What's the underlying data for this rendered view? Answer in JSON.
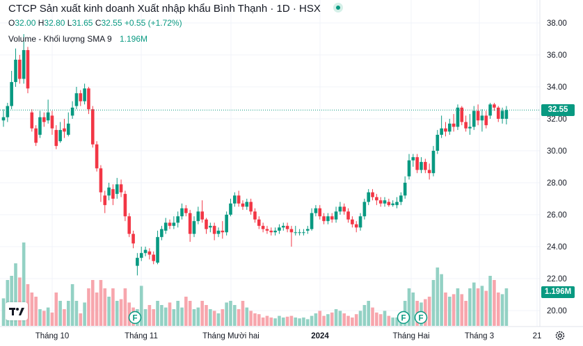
{
  "header": {
    "title": "CTCP Sản xuất kinh doanh Xuất nhập khẩu Bình Thạnh · 1D · HSX",
    "ohlc": [
      {
        "label": "O",
        "value": "32.00"
      },
      {
        "label": "H",
        "value": "32.80"
      },
      {
        "label": "L",
        "value": "31.65"
      },
      {
        "label": "C",
        "value": "32.55"
      }
    ],
    "change": "+0.55 (+1.72%)",
    "volume_label": "Volume - Khối lượng SMA 9",
    "volume_value": "1.196M"
  },
  "price_badge": "32.55",
  "volume_badge": "1.196M",
  "colors": {
    "up": "#089981",
    "down": "#f23645",
    "vol_up": "#93d1c4",
    "vol_down": "#f7a6ad",
    "grid": "#f0f3fa"
  },
  "icons": [
    "tradingview-logo-icon",
    "settings-icon",
    "earnings-marker-icon"
  ],
  "chart_data": {
    "type": "candlestick",
    "price_axis": {
      "ticks": [
        "38.00",
        "36.00",
        "34.00",
        "32.00",
        "30.00",
        "28.00",
        "26.00",
        "24.00",
        "22.00",
        "20.00"
      ],
      "range": [
        19.0,
        39.0
      ]
    },
    "time_axis": {
      "ticks": [
        "Tháng 10",
        "Tháng 11",
        "Tháng Mười hai",
        "2024",
        "Tháng Hai",
        "Tháng 3",
        "21"
      ]
    },
    "last_price": 32.55,
    "earnings_markers": [
      {
        "label": "F",
        "near": "Tháng 11"
      },
      {
        "label": "F",
        "near": "Tháng Hai"
      },
      {
        "label": "F",
        "near": "Tháng Hai"
      }
    ],
    "candles": [
      [
        31.9,
        32.1,
        32.6,
        31.5
      ],
      [
        32.1,
        32.8,
        33.0,
        31.8
      ],
      [
        32.8,
        34.3,
        35.0,
        32.6
      ],
      [
        34.3,
        35.7,
        36.4,
        34.0
      ],
      [
        35.7,
        34.5,
        36.0,
        34.2
      ],
      [
        34.5,
        36.3,
        37.3,
        34.2
      ],
      [
        36.3,
        33.9,
        36.5,
        33.6
      ],
      [
        32.4,
        31.4,
        32.6,
        31.2
      ],
      [
        31.4,
        30.5,
        31.6,
        30.3
      ],
      [
        31.0,
        32.1,
        32.5,
        30.8
      ],
      [
        32.1,
        31.8,
        32.4,
        31.5
      ],
      [
        31.9,
        32.4,
        33.2,
        31.7
      ],
      [
        32.2,
        31.4,
        32.5,
        31.0
      ],
      [
        31.3,
        30.3,
        31.6,
        30.1
      ],
      [
        30.6,
        31.3,
        31.8,
        30.5
      ],
      [
        31.4,
        31.2,
        32.0,
        30.8
      ],
      [
        31.0,
        31.7,
        32.4,
        30.9
      ],
      [
        32.2,
        32.7,
        33.1,
        32.0
      ],
      [
        32.8,
        33.6,
        34.0,
        32.6
      ],
      [
        33.6,
        33.1,
        33.8,
        32.8
      ],
      [
        33.1,
        33.9,
        34.2,
        32.9
      ],
      [
        33.9,
        32.6,
        34.0,
        32.3
      ],
      [
        32.6,
        30.4,
        32.8,
        30.2
      ],
      [
        30.4,
        28.9,
        30.6,
        28.7
      ],
      [
        28.9,
        27.4,
        29.1,
        26.8
      ],
      [
        27.2,
        26.6,
        27.5,
        26.1
      ],
      [
        27.2,
        27.7,
        28.0,
        26.9
      ],
      [
        27.6,
        27.0,
        27.9,
        26.6
      ],
      [
        27.3,
        27.9,
        28.3,
        27.0
      ],
      [
        27.9,
        27.4,
        28.2,
        27.1
      ],
      [
        27.3,
        25.9,
        27.5,
        25.6
      ],
      [
        25.9,
        24.8,
        26.1,
        24.6
      ],
      [
        24.8,
        24.2,
        25.0,
        23.9
      ],
      [
        22.8,
        23.3,
        23.6,
        22.2
      ],
      [
        23.3,
        23.6,
        24.0,
        23.1
      ],
      [
        23.6,
        23.8,
        24.0,
        23.4
      ],
      [
        23.7,
        23.5,
        23.9,
        23.2
      ],
      [
        23.5,
        23.1,
        23.7,
        22.9
      ],
      [
        23.0,
        24.6,
        25.0,
        22.9
      ],
      [
        24.6,
        25.1,
        25.3,
        24.4
      ],
      [
        25.0,
        25.5,
        25.8,
        24.8
      ],
      [
        25.5,
        25.3,
        25.7,
        25.1
      ],
      [
        25.3,
        25.5,
        25.9,
        25.1
      ],
      [
        25.5,
        25.9,
        26.2,
        25.2
      ],
      [
        25.9,
        26.4,
        26.7,
        25.7
      ],
      [
        26.4,
        26.1,
        26.6,
        25.9
      ],
      [
        26.1,
        24.8,
        26.3,
        24.3
      ],
      [
        24.8,
        25.6,
        25.9,
        24.6
      ],
      [
        25.6,
        26.2,
        26.5,
        25.4
      ],
      [
        26.2,
        25.7,
        26.9,
        25.5
      ],
      [
        25.7,
        25.1,
        25.8,
        24.8
      ],
      [
        25.2,
        25.3,
        25.5,
        24.9
      ],
      [
        25.3,
        24.8,
        25.5,
        24.4
      ],
      [
        24.8,
        25.0,
        25.2,
        24.6
      ],
      [
        25.0,
        24.9,
        25.6,
        24.5
      ],
      [
        24.9,
        26.0,
        26.2,
        24.7
      ],
      [
        26.0,
        26.7,
        27.0,
        25.9
      ],
      [
        26.7,
        27.2,
        27.4,
        26.5
      ],
      [
        27.2,
        26.7,
        27.5,
        26.5
      ],
      [
        26.7,
        26.5,
        26.9,
        26.3
      ],
      [
        26.5,
        26.8,
        27.0,
        26.3
      ],
      [
        26.8,
        26.2,
        27.0,
        26.0
      ],
      [
        26.2,
        25.7,
        26.4,
        25.5
      ],
      [
        25.7,
        25.3,
        25.9,
        25.1
      ],
      [
        25.3,
        25.1,
        25.5,
        24.9
      ],
      [
        25.1,
        25.0,
        25.3,
        24.8
      ],
      [
        25.0,
        24.9,
        25.2,
        24.7
      ],
      [
        24.9,
        25.0,
        25.2,
        24.7
      ],
      [
        25.0,
        25.2,
        25.4,
        24.8
      ],
      [
        25.2,
        25.3,
        25.5,
        25.0
      ],
      [
        25.3,
        25.1,
        25.5,
        24.9
      ],
      [
        25.1,
        24.9,
        25.3,
        24.0
      ],
      [
        24.9,
        24.9,
        25.3,
        24.7
      ],
      [
        24.9,
        24.9,
        25.1,
        24.7
      ],
      [
        24.9,
        24.9,
        25.1,
        24.7
      ],
      [
        25.0,
        25.1,
        25.3,
        24.8
      ],
      [
        25.1,
        26.1,
        26.4,
        25.0
      ],
      [
        26.1,
        26.4,
        26.6,
        25.9
      ],
      [
        26.4,
        25.9,
        26.6,
        25.7
      ],
      [
        25.9,
        25.6,
        26.1,
        25.4
      ],
      [
        25.6,
        25.9,
        26.1,
        25.4
      ],
      [
        25.9,
        25.7,
        26.1,
        25.5
      ],
      [
        25.7,
        26.2,
        26.5,
        25.5
      ],
      [
        26.2,
        26.5,
        26.8,
        26.0
      ],
      [
        26.5,
        26.2,
        26.7,
        26.0
      ],
      [
        26.2,
        25.7,
        26.4,
        25.5
      ],
      [
        25.7,
        25.4,
        25.9,
        25.2
      ],
      [
        25.4,
        25.2,
        25.6,
        24.9
      ],
      [
        25.2,
        25.9,
        26.1,
        25.0
      ],
      [
        25.9,
        26.8,
        27.0,
        25.7
      ],
      [
        26.8,
        27.4,
        27.6,
        26.6
      ],
      [
        27.4,
        27.1,
        27.6,
        26.9
      ],
      [
        27.1,
        26.9,
        27.3,
        26.6
      ],
      [
        26.9,
        26.7,
        27.1,
        26.5
      ],
      [
        26.7,
        26.9,
        27.1,
        26.5
      ],
      [
        26.8,
        26.6,
        27.0,
        26.5
      ],
      [
        26.6,
        26.7,
        26.9,
        26.5
      ],
      [
        26.6,
        26.8,
        27.1,
        26.4
      ],
      [
        26.8,
        27.2,
        27.4,
        26.6
      ],
      [
        27.2,
        28.0,
        28.4,
        27.0
      ],
      [
        28.4,
        29.4,
        29.8,
        28.2
      ],
      [
        29.4,
        29.6,
        29.8,
        29.0
      ],
      [
        29.6,
        28.8,
        29.8,
        28.6
      ],
      [
        28.8,
        29.3,
        29.6,
        28.6
      ],
      [
        29.3,
        28.8,
        29.5,
        28.6
      ],
      [
        28.8,
        28.6,
        29.2,
        28.2
      ],
      [
        28.6,
        30.0,
        30.3,
        28.4
      ],
      [
        30.0,
        31.0,
        31.3,
        29.8
      ],
      [
        31.0,
        31.4,
        32.2,
        30.8
      ],
      [
        31.4,
        31.2,
        31.8,
        30.9
      ],
      [
        31.2,
        31.7,
        32.0,
        31.0
      ],
      [
        31.7,
        31.5,
        32.3,
        31.2
      ],
      [
        31.5,
        32.7,
        32.9,
        31.3
      ],
      [
        32.7,
        31.8,
        32.8,
        31.6
      ],
      [
        31.8,
        31.4,
        32.2,
        31.2
      ],
      [
        31.4,
        31.5,
        32.3,
        31.0
      ],
      [
        31.5,
        32.5,
        32.8,
        31.3
      ],
      [
        32.5,
        31.9,
        32.9,
        31.6
      ],
      [
        31.9,
        32.2,
        32.6,
        31.2
      ],
      [
        32.2,
        31.6,
        32.5,
        31.4
      ],
      [
        32.2,
        32.9,
        33.0,
        32.0
      ],
      [
        32.9,
        32.7,
        33.0,
        32.5
      ],
      [
        32.7,
        32.0,
        32.8,
        31.8
      ],
      [
        32.0,
        32.5,
        32.7,
        31.7
      ],
      [
        32.0,
        32.55,
        32.8,
        31.65
      ]
    ],
    "volume_units": "relative (0-1 of panel max)",
    "volume": [
      0.33,
      0.55,
      0.6,
      0.75,
      0.58,
      1.0,
      0.5,
      0.4,
      0.35,
      0.2,
      0.18,
      0.22,
      0.16,
      0.4,
      0.3,
      0.2,
      0.3,
      0.5,
      0.3,
      0.15,
      0.28,
      0.45,
      0.55,
      0.4,
      0.55,
      0.45,
      0.35,
      0.45,
      0.3,
      0.32,
      0.45,
      0.28,
      0.22,
      0.2,
      0.48,
      0.2,
      0.25,
      0.2,
      0.3,
      0.25,
      0.22,
      0.28,
      0.2,
      0.3,
      0.22,
      0.35,
      0.3,
      0.2,
      0.22,
      0.3,
      0.25,
      0.2,
      0.18,
      0.15,
      0.2,
      0.28,
      0.3,
      0.25,
      0.2,
      0.3,
      0.22,
      0.18,
      0.15,
      0.14,
      0.1,
      0.12,
      0.1,
      0.09,
      0.12,
      0.1,
      0.11,
      0.12,
      0.1,
      0.09,
      0.1,
      0.08,
      0.12,
      0.15,
      0.18,
      0.12,
      0.14,
      0.16,
      0.2,
      0.18,
      0.15,
      0.12,
      0.1,
      0.14,
      0.18,
      0.25,
      0.3,
      0.22,
      0.16,
      0.14,
      0.18,
      0.12,
      0.1,
      0.1,
      0.16,
      0.3,
      0.45,
      0.4,
      0.3,
      0.28,
      0.32,
      0.35,
      0.55,
      0.7,
      0.62,
      0.4,
      0.35,
      0.38,
      0.45,
      0.38,
      0.3,
      0.45,
      0.52,
      0.45,
      0.48,
      0.42,
      0.6,
      0.55,
      0.4,
      0.38,
      0.45
    ]
  }
}
